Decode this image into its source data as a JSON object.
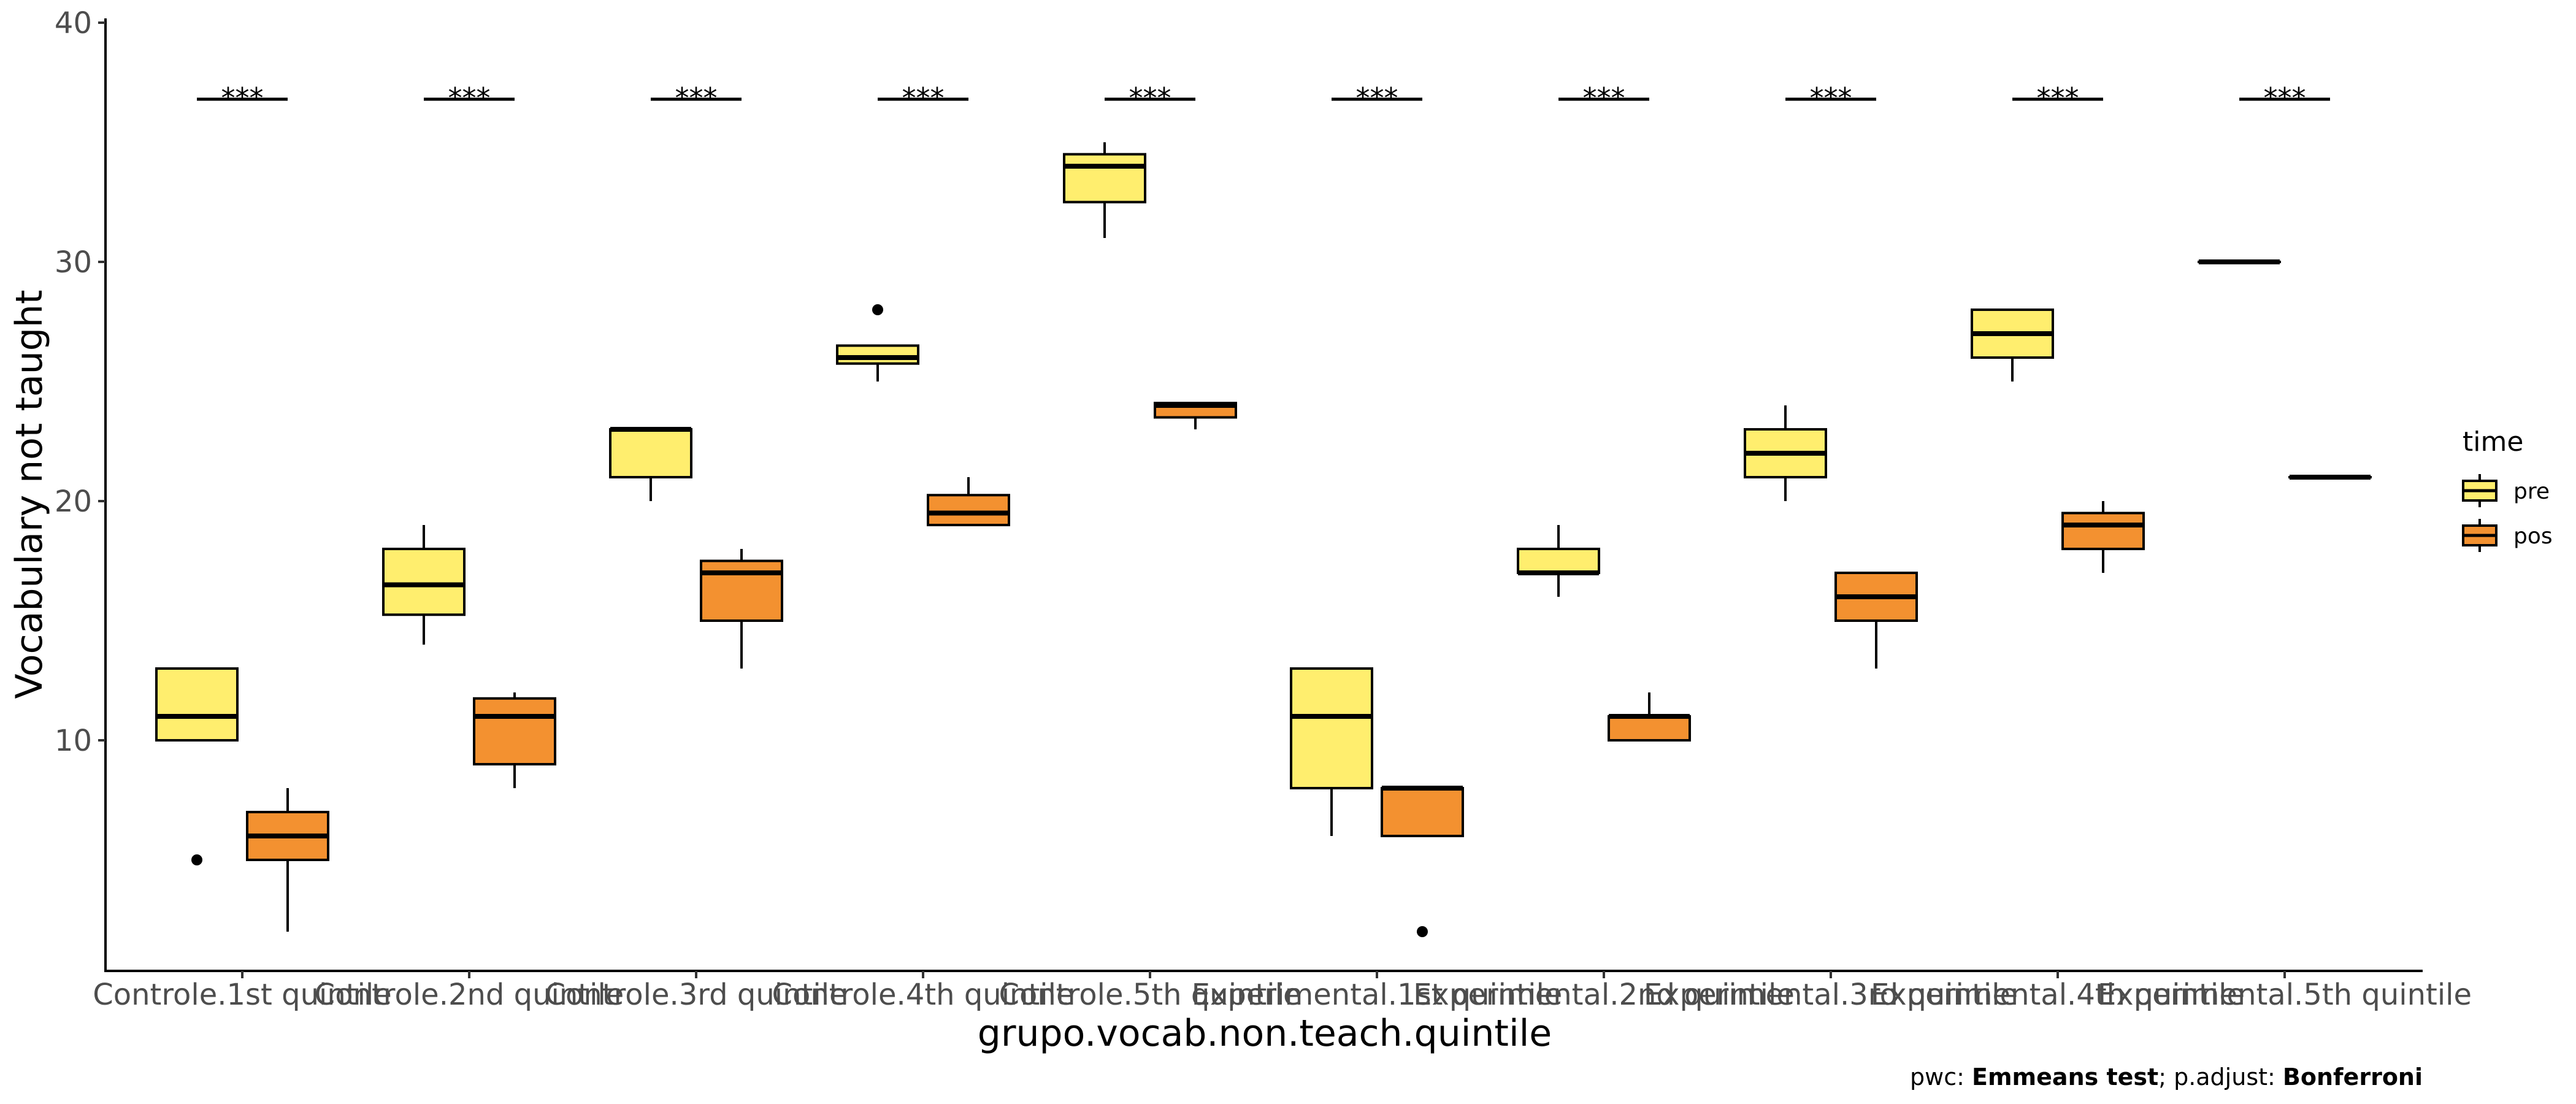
{
  "chart_data": {
    "type": "boxplot",
    "xlabel": "grupo.vocab.non.teach.quintile",
    "ylabel": "Vocabulary not taught",
    "y_ticks": [
      10,
      20,
      30,
      40
    ],
    "ylim": [
      0,
      40
    ],
    "grid": false,
    "legend": {
      "title": "time",
      "position": "right",
      "entries": [
        {
          "label": "pre",
          "color": "#FFEE6E"
        },
        {
          "label": "pos",
          "color": "#F39130"
        }
      ]
    },
    "categories": [
      "Controle.1st quintile",
      "Controle.2nd quintile",
      "Controle.3rd quintile",
      "Controle.4th quintile",
      "Controle.5th quintile",
      "Experimental.1st quintile",
      "Experimental.2nd quintile",
      "Experimental.3rd quintile",
      "Experimental.4th quintile",
      "Experimental.5th quintile"
    ],
    "series": [
      {
        "name": "pre",
        "color": "#FFEE6E",
        "boxes": [
          {
            "lower_whisker": 10,
            "q1": 10,
            "median": 11,
            "q3": 13,
            "upper_whisker": 13,
            "outliers": [
              5
            ]
          },
          {
            "lower_whisker": 14,
            "q1": 15.25,
            "median": 16.5,
            "q3": 18,
            "upper_whisker": 19,
            "outliers": []
          },
          {
            "lower_whisker": 20,
            "q1": 21,
            "median": 23,
            "q3": 23,
            "upper_whisker": 23,
            "outliers": []
          },
          {
            "lower_whisker": 25,
            "q1": 25.75,
            "median": 26,
            "q3": 26.5,
            "upper_whisker": 26.5,
            "outliers": [
              28
            ]
          },
          {
            "lower_whisker": 31,
            "q1": 32.5,
            "median": 34,
            "q3": 34.5,
            "upper_whisker": 35,
            "outliers": []
          },
          {
            "lower_whisker": 6,
            "q1": 8,
            "median": 11,
            "q3": 13,
            "upper_whisker": 13,
            "outliers": []
          },
          {
            "lower_whisker": 16,
            "q1": 17,
            "median": 17,
            "q3": 18,
            "upper_whisker": 19,
            "outliers": []
          },
          {
            "lower_whisker": 20,
            "q1": 21,
            "median": 22,
            "q3": 23,
            "upper_whisker": 24,
            "outliers": []
          },
          {
            "lower_whisker": 25,
            "q1": 26,
            "median": 27,
            "q3": 28,
            "upper_whisker": 28,
            "outliers": []
          },
          {
            "lower_whisker": 30,
            "q1": 30,
            "median": 30,
            "q3": 30,
            "upper_whisker": 30,
            "outliers": []
          }
        ]
      },
      {
        "name": "pos",
        "color": "#F39130",
        "boxes": [
          {
            "lower_whisker": 2,
            "q1": 5,
            "median": 6,
            "q3": 7,
            "upper_whisker": 8,
            "outliers": []
          },
          {
            "lower_whisker": 8,
            "q1": 9,
            "median": 11,
            "q3": 11.75,
            "upper_whisker": 12,
            "outliers": []
          },
          {
            "lower_whisker": 13,
            "q1": 15,
            "median": 17,
            "q3": 17.5,
            "upper_whisker": 18,
            "outliers": []
          },
          {
            "lower_whisker": 19,
            "q1": 19,
            "median": 19.5,
            "q3": 20.25,
            "upper_whisker": 21,
            "outliers": []
          },
          {
            "lower_whisker": 23,
            "q1": 23.5,
            "median": 24,
            "q3": 24.1,
            "upper_whisker": 24.1,
            "outliers": []
          },
          {
            "lower_whisker": 6,
            "q1": 6,
            "median": 8,
            "q3": 8,
            "upper_whisker": 8,
            "outliers": [
              2
            ]
          },
          {
            "lower_whisker": 10,
            "q1": 10,
            "median": 11,
            "q3": 11,
            "upper_whisker": 12,
            "outliers": []
          },
          {
            "lower_whisker": 13,
            "q1": 15,
            "median": 16,
            "q3": 17,
            "upper_whisker": 17,
            "outliers": []
          },
          {
            "lower_whisker": 17,
            "q1": 18,
            "median": 19,
            "q3": 19.5,
            "upper_whisker": 20,
            "outliers": []
          },
          {
            "lower_whisker": 21,
            "q1": 21,
            "median": 21,
            "q3": 21,
            "upper_whisker": 21,
            "outliers": []
          }
        ]
      }
    ],
    "significance": {
      "y": 36.8,
      "labels": [
        "***",
        "***",
        "***",
        "***",
        "***",
        "***",
        "***",
        "***",
        "***",
        "***"
      ]
    },
    "caption": {
      "prefix": "pwc: ",
      "test": "Emmeans test",
      "separator": "; p.adjust: ",
      "adjust": "Bonferroni"
    }
  }
}
